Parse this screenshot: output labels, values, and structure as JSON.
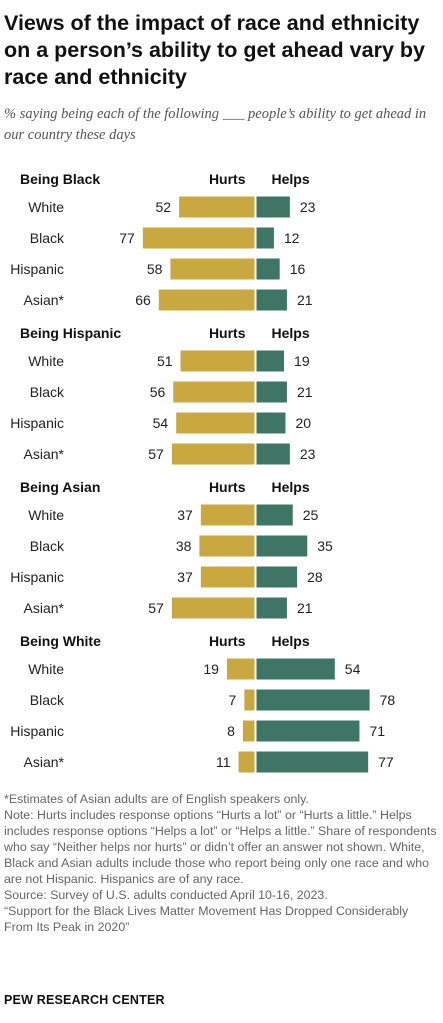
{
  "header": {
    "title": "Views of the impact of race and ethnicity on a person’s ability to get ahead vary by race and ethnicity",
    "subtitle": "% saying being each of the following ___ people’s ability to get ahead in our country these days"
  },
  "colors": {
    "hurts": "#c9a93f",
    "helps": "#3f7564",
    "text": "#222222"
  },
  "chart_data": {
    "type": "bar",
    "orientation": "horizontal-diverging",
    "column_labels": {
      "hurts": "Hurts",
      "helps": "Helps"
    },
    "categories": [
      "White",
      "Black",
      "Hispanic",
      "Asian*"
    ],
    "panels": [
      {
        "title": "Being Black",
        "series": [
          {
            "name": "Hurts",
            "values": [
              52,
              77,
              58,
              66
            ]
          },
          {
            "name": "Helps",
            "values": [
              23,
              12,
              16,
              21
            ]
          }
        ]
      },
      {
        "title": "Being Hispanic",
        "series": [
          {
            "name": "Hurts",
            "values": [
              51,
              56,
              54,
              57
            ]
          },
          {
            "name": "Helps",
            "values": [
              19,
              21,
              20,
              23
            ]
          }
        ]
      },
      {
        "title": "Being Asian",
        "series": [
          {
            "name": "Hurts",
            "values": [
              37,
              38,
              37,
              57
            ]
          },
          {
            "name": "Helps",
            "values": [
              25,
              35,
              28,
              21
            ]
          }
        ]
      },
      {
        "title": "Being White",
        "series": [
          {
            "name": "Hurts",
            "values": [
              19,
              7,
              8,
              11
            ]
          },
          {
            "name": "Helps",
            "values": [
              54,
              78,
              71,
              77
            ]
          }
        ]
      }
    ]
  },
  "footer": {
    "notes": [
      "*Estimates of Asian adults are of English speakers only.",
      "Note: Hurts includes response options “Hurts a lot” or “Hurts a little.” Helps includes response options “Helps a lot” or “Helps a little.” Share of respondents who say “Neither helps nor hurts” or didn’t offer an answer not shown. White, Black and Asian adults include those who report being only one race and who are not Hispanic. Hispanics are of any race.",
      "Source: Survey of U.S. adults conducted April 10-16, 2023.",
      "“Support for the Black Lives Matter Movement Has Dropped Considerably From Its Peak in 2020”"
    ],
    "brand": "PEW RESEARCH CENTER"
  }
}
